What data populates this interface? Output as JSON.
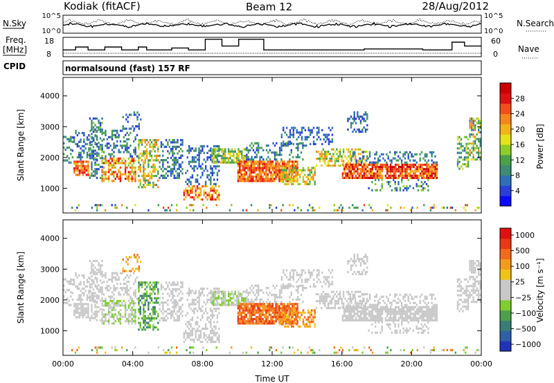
{
  "header": {
    "station": "Kodiak (fitACF)",
    "beam": "Beam 12",
    "date": "28/Aug/2012"
  },
  "summary_panels": {
    "noise": {
      "left_label": "N.Sky",
      "right_label": "N.Search",
      "left_ticks": [
        "10^5",
        "10^0"
      ],
      "right_ticks": [
        "10^5",
        "10^0"
      ]
    },
    "freq": {
      "left_label_1": "Freq.",
      "left_label_2": "[MHz]",
      "right_label": "Nave",
      "left_ticks": [
        "18",
        "8"
      ],
      "right_ticks": [
        "60",
        "0"
      ]
    },
    "cpid": {
      "left_label": "CPID",
      "text": "normalsound (fast) 157 RF"
    }
  },
  "chart_data": [
    {
      "type": "heatmap",
      "name": "power",
      "ylabel": "Slant Range [km]",
      "xlabel": "Time UT",
      "ylim": [
        200,
        4600
      ],
      "y_ticks": [
        "1000",
        "2000",
        "3000",
        "4000"
      ],
      "x_ticks": [
        "00:00",
        "04:00",
        "08:00",
        "12:00",
        "16:00",
        "20:00",
        "00:00"
      ],
      "x_range_hours": [
        0,
        24
      ],
      "colorbar": {
        "label": "Power [dB]",
        "ticks": [
          "4",
          "8",
          "12",
          "16",
          "20",
          "24",
          "28"
        ],
        "range": [
          0,
          32
        ],
        "colors": [
          "#0a0aff",
          "#2a3fd6",
          "#2f6fb8",
          "#3b8c72",
          "#4aa14a",
          "#8ccd2a",
          "#e6e21a",
          "#f2b21a",
          "#f4861e",
          "#f24e1b",
          "#e01010",
          "#cc0000"
        ]
      },
      "grid": false
    },
    {
      "type": "heatmap",
      "name": "velocity",
      "ylabel": "Slant Range [km]",
      "xlabel": "Time UT",
      "ylim": [
        200,
        4600
      ],
      "y_ticks": [
        "1000",
        "2000",
        "3000",
        "4000"
      ],
      "x_ticks": [
        "00:00",
        "04:00",
        "08:00",
        "12:00",
        "16:00",
        "20:00",
        "00:00"
      ],
      "x_range_hours": [
        0,
        24
      ],
      "colorbar": {
        "label": "Velocity [m s⁻¹]",
        "ticks": [
          "1000",
          "500",
          "100",
          "25",
          "−25",
          "−100",
          "−500",
          "−1000"
        ],
        "colors": [
          "#2033b8",
          "#2f5fa8",
          "#3a7c76",
          "#4ca04c",
          "#7fcd2f",
          "#c8c8c8",
          "#c8c8c8",
          "#f2c21a",
          "#f49a1e",
          "#f26a1b",
          "#e83814",
          "#e01010"
        ]
      },
      "grid": false
    }
  ]
}
